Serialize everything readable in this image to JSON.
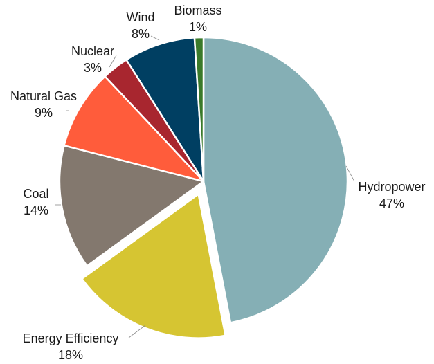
{
  "chart_data": {
    "type": "pie",
    "title": "",
    "start": "12 o'clock",
    "direction": "clockwise",
    "exploded": [
      "Energy Efficiency"
    ],
    "slices": [
      {
        "name": "Hydropower",
        "value": 47,
        "label": "Hydropower",
        "pct_label": "47%",
        "color": "#85AFB5"
      },
      {
        "name": "Energy Efficiency",
        "value": 18,
        "label": "Energy Efficiency",
        "pct_label": "18%",
        "color": "#D6C532"
      },
      {
        "name": "Coal",
        "value": 14,
        "label": "Coal",
        "pct_label": "14%",
        "color": "#83786E"
      },
      {
        "name": "Natural Gas",
        "value": 9,
        "label": "Natural Gas",
        "pct_label": "9%",
        "color": "#FF5C3B"
      },
      {
        "name": "Nuclear",
        "value": 3,
        "label": "Nuclear",
        "pct_label": "3%",
        "color": "#A8262F"
      },
      {
        "name": "Wind",
        "value": 8,
        "label": "Wind",
        "pct_label": "8%",
        "color": "#003F62"
      },
      {
        "name": "Biomass",
        "value": 1,
        "label": "Biomass",
        "pct_label": "1%",
        "color": "#3A7A2A"
      }
    ]
  }
}
